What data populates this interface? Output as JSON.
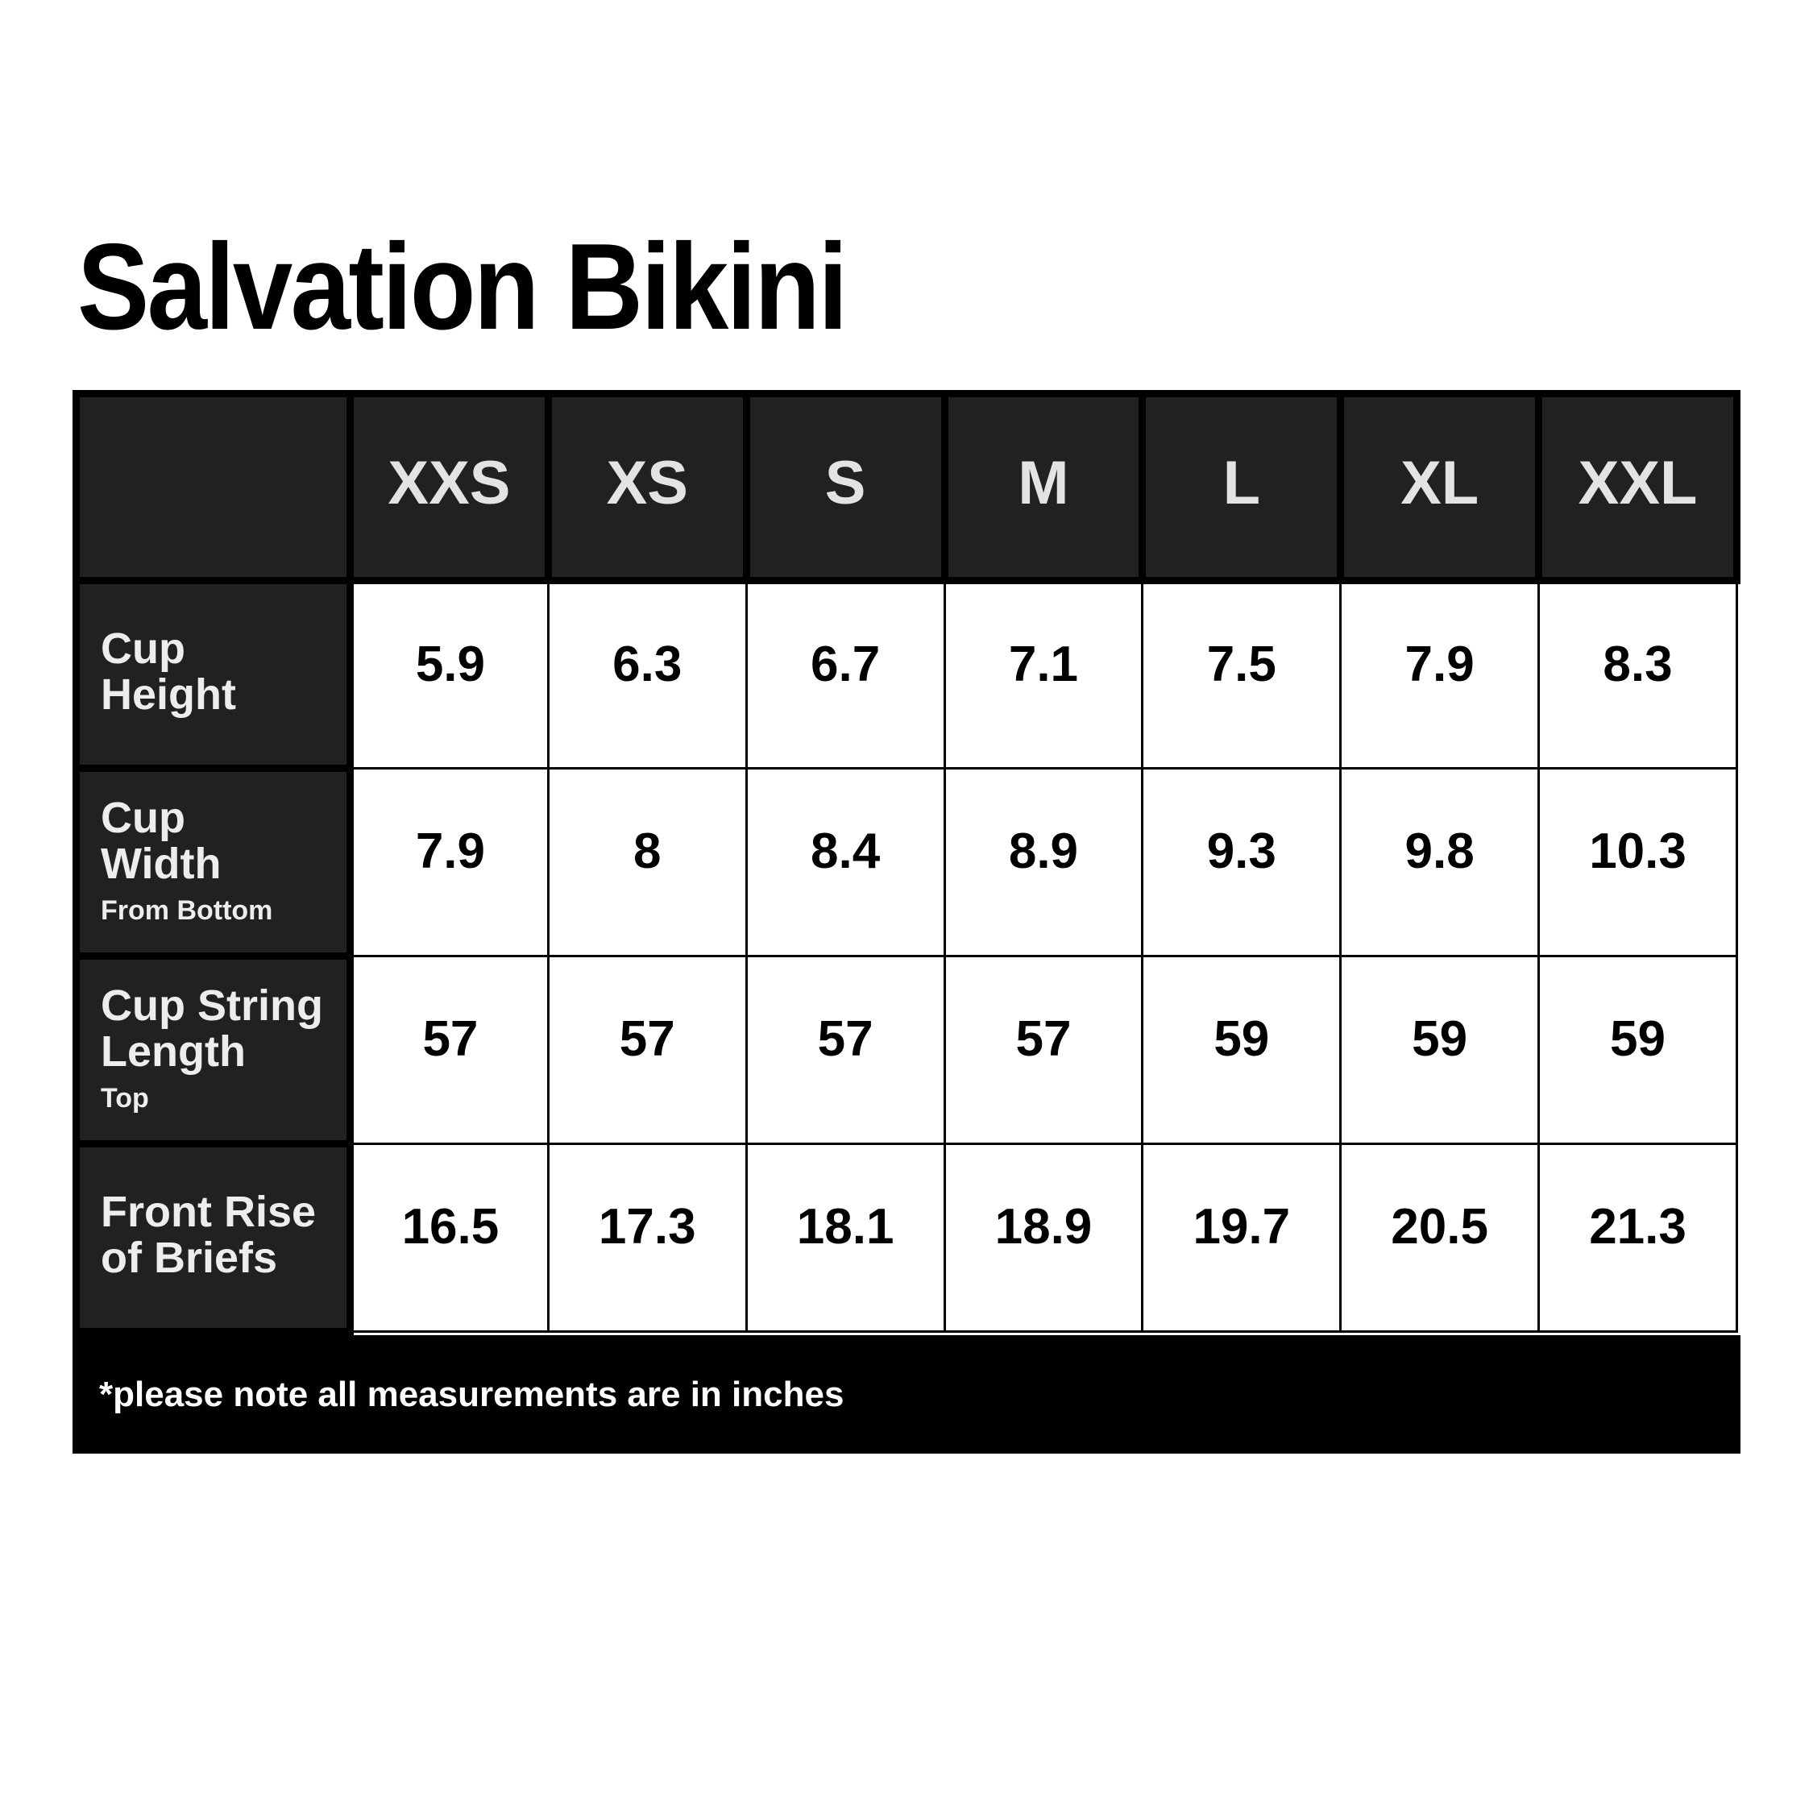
{
  "chart_data": {
    "type": "table",
    "title": "Salvation Bikini",
    "columns": [
      "",
      "XXS",
      "XS",
      "S",
      "M",
      "L",
      "XL",
      "XXL"
    ],
    "rows": [
      {
        "label": "Cup Height",
        "values": [
          5.9,
          6.3,
          6.7,
          7.1,
          7.5,
          7.9,
          8.3
        ]
      },
      {
        "label": "Cup Width (From Bottom)",
        "values": [
          7.9,
          8,
          8.4,
          8.9,
          9.3,
          9.8,
          10.3
        ]
      },
      {
        "label": "Cup String Length (Top)",
        "values": [
          57,
          57,
          57,
          57,
          59,
          59,
          59
        ]
      },
      {
        "label": "Front Rise of Briefs",
        "values": [
          16.5,
          17.3,
          18.1,
          18.9,
          19.7,
          20.5,
          21.3
        ]
      }
    ],
    "note": "*please note all measurements are in inches",
    "units": "inches",
    "legend_position": "none",
    "grid": true
  },
  "ui": {
    "row_labels": [
      {
        "label": "Cup\nHeight",
        "sublabel": ""
      },
      {
        "label": "Cup\nWidth",
        "sublabel": "From Bottom"
      },
      {
        "label": "Cup String\nLength",
        "sublabel": "Top"
      },
      {
        "label": "Front Rise\nof Briefs",
        "sublabel": ""
      }
    ]
  },
  "colors": {
    "page_background": "#ffffff",
    "dark_cell_background": "#212121",
    "grid_border": "#000000",
    "size_header_text": "#e3e3e3",
    "row_label_text": "#ededed",
    "value_text": "#000000",
    "footer_background": "#000000",
    "footer_text": "#ffffff"
  }
}
